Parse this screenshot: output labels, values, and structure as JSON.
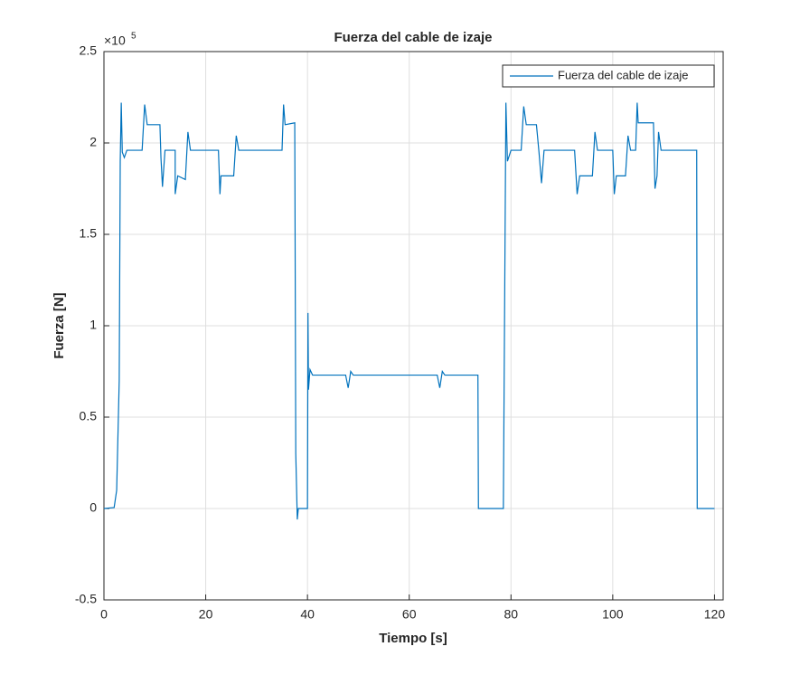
{
  "chart_data": {
    "type": "line",
    "title": "Fuerza del cable de izaje",
    "x_label": "Tiempo [s]",
    "y_label": "Fuerza [N]",
    "y_exponent_base": "×10",
    "y_exponent": "5",
    "xlim": [
      0,
      121.7
    ],
    "ylim": [
      -0.5,
      2.5
    ],
    "xticks": [
      0,
      20,
      40,
      60,
      80,
      100,
      120
    ],
    "yticks": [
      -0.5,
      0,
      0.5,
      1,
      1.5,
      2,
      2.5
    ],
    "grid": true,
    "legend": "upper right",
    "x": [
      0,
      2,
      2.5,
      3,
      3.2,
      3.4,
      3.6,
      4,
      4.5,
      7.5,
      8,
      8.5,
      11,
      11.2,
      11.5,
      12,
      14,
      14,
      14.5,
      16,
      16.5,
      17,
      22.5,
      22.8,
      23,
      25.5,
      26,
      26.5,
      35,
      35.3,
      35.6,
      37.5,
      37.7,
      38,
      38.2,
      40,
      40.1,
      40.2,
      40.5,
      41,
      47.5,
      48,
      48.5,
      49,
      65.5,
      66,
      66.5,
      67,
      73.5,
      73.6,
      78.5,
      79,
      79.3,
      80,
      82,
      82.5,
      83,
      85,
      85.5,
      86,
      86.5,
      92.5,
      93,
      93.5,
      96,
      96.5,
      97,
      100,
      100.3,
      100.7,
      102.5,
      103,
      103.5,
      104.5,
      104.8,
      105,
      108,
      108.3,
      108.7,
      109,
      109.5,
      116.5,
      116.6,
      120
    ],
    "series": [
      {
        "name": "Fuerza del cable de izaje",
        "color": "#0072bd",
        "values": [
          0,
          0.005,
          0.1,
          0.7,
          1.9,
          2.22,
          1.95,
          1.92,
          1.96,
          1.96,
          2.21,
          2.1,
          2.1,
          1.92,
          1.76,
          1.96,
          1.96,
          1.72,
          1.82,
          1.8,
          2.06,
          1.96,
          1.96,
          1.72,
          1.82,
          1.82,
          2.04,
          1.96,
          1.96,
          2.21,
          2.1,
          2.11,
          0.3,
          -0.06,
          0,
          0,
          1.07,
          0.65,
          0.76,
          0.73,
          0.73,
          0.66,
          0.75,
          0.73,
          0.73,
          0.66,
          0.75,
          0.73,
          0.73,
          0,
          0,
          2.22,
          1.9,
          1.96,
          1.96,
          2.2,
          2.1,
          2.1,
          1.95,
          1.78,
          1.96,
          1.96,
          1.72,
          1.82,
          1.82,
          2.06,
          1.96,
          1.96,
          1.72,
          1.82,
          1.82,
          2.04,
          1.96,
          1.96,
          2.22,
          2.11,
          2.11,
          1.75,
          1.82,
          2.06,
          1.96,
          1.96,
          0,
          0
        ]
      }
    ]
  }
}
